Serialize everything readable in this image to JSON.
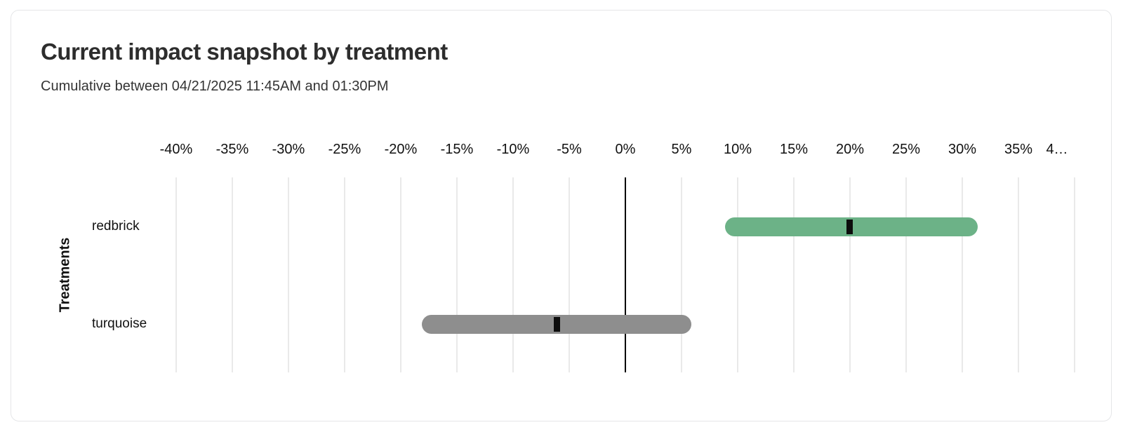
{
  "card": {
    "title": "Current impact snapshot by treatment",
    "subtitle": "Cumulative between 04/21/2025 11:45AM and 01:30PM"
  },
  "chart_data": {
    "type": "bar",
    "orientation": "horizontal",
    "title": "Current impact snapshot by treatment",
    "subtitle": "Cumulative between 04/21/2025 11:45AM and 01:30PM",
    "xlabel": "",
    "ylabel": "Treatments",
    "axis": {
      "min": -40,
      "max": 40,
      "step": 5,
      "unit": "%"
    },
    "tick_labels": [
      "-40%",
      "-35%",
      "-30%",
      "-25%",
      "-20%",
      "-15%",
      "-10%",
      "-5%",
      "0%",
      "5%",
      "10%",
      "15%",
      "20%",
      "25%",
      "30%",
      "35%",
      "4…"
    ],
    "categories": [
      "redbrick",
      "turquoise"
    ],
    "series": [
      {
        "name": "redbrick",
        "lower": 8.9,
        "estimate": 20.0,
        "upper": 31.4,
        "color": "#6cb287"
      },
      {
        "name": "turquoise",
        "lower": -18.1,
        "estimate": -6.1,
        "upper": 5.9,
        "color": "#8e8e8e"
      }
    ],
    "marker_color": "#0d0d0d",
    "zero_line": true,
    "grid": true,
    "legend": "none"
  },
  "colors": {
    "card_border": "#e5e6e8",
    "gridline": "#e9e9e9",
    "zero_line": "#000000",
    "bar_green": "#6cb287",
    "bar_gray": "#8e8e8e",
    "marker": "#0d0d0d",
    "text_dark": "#2d2d2d"
  }
}
